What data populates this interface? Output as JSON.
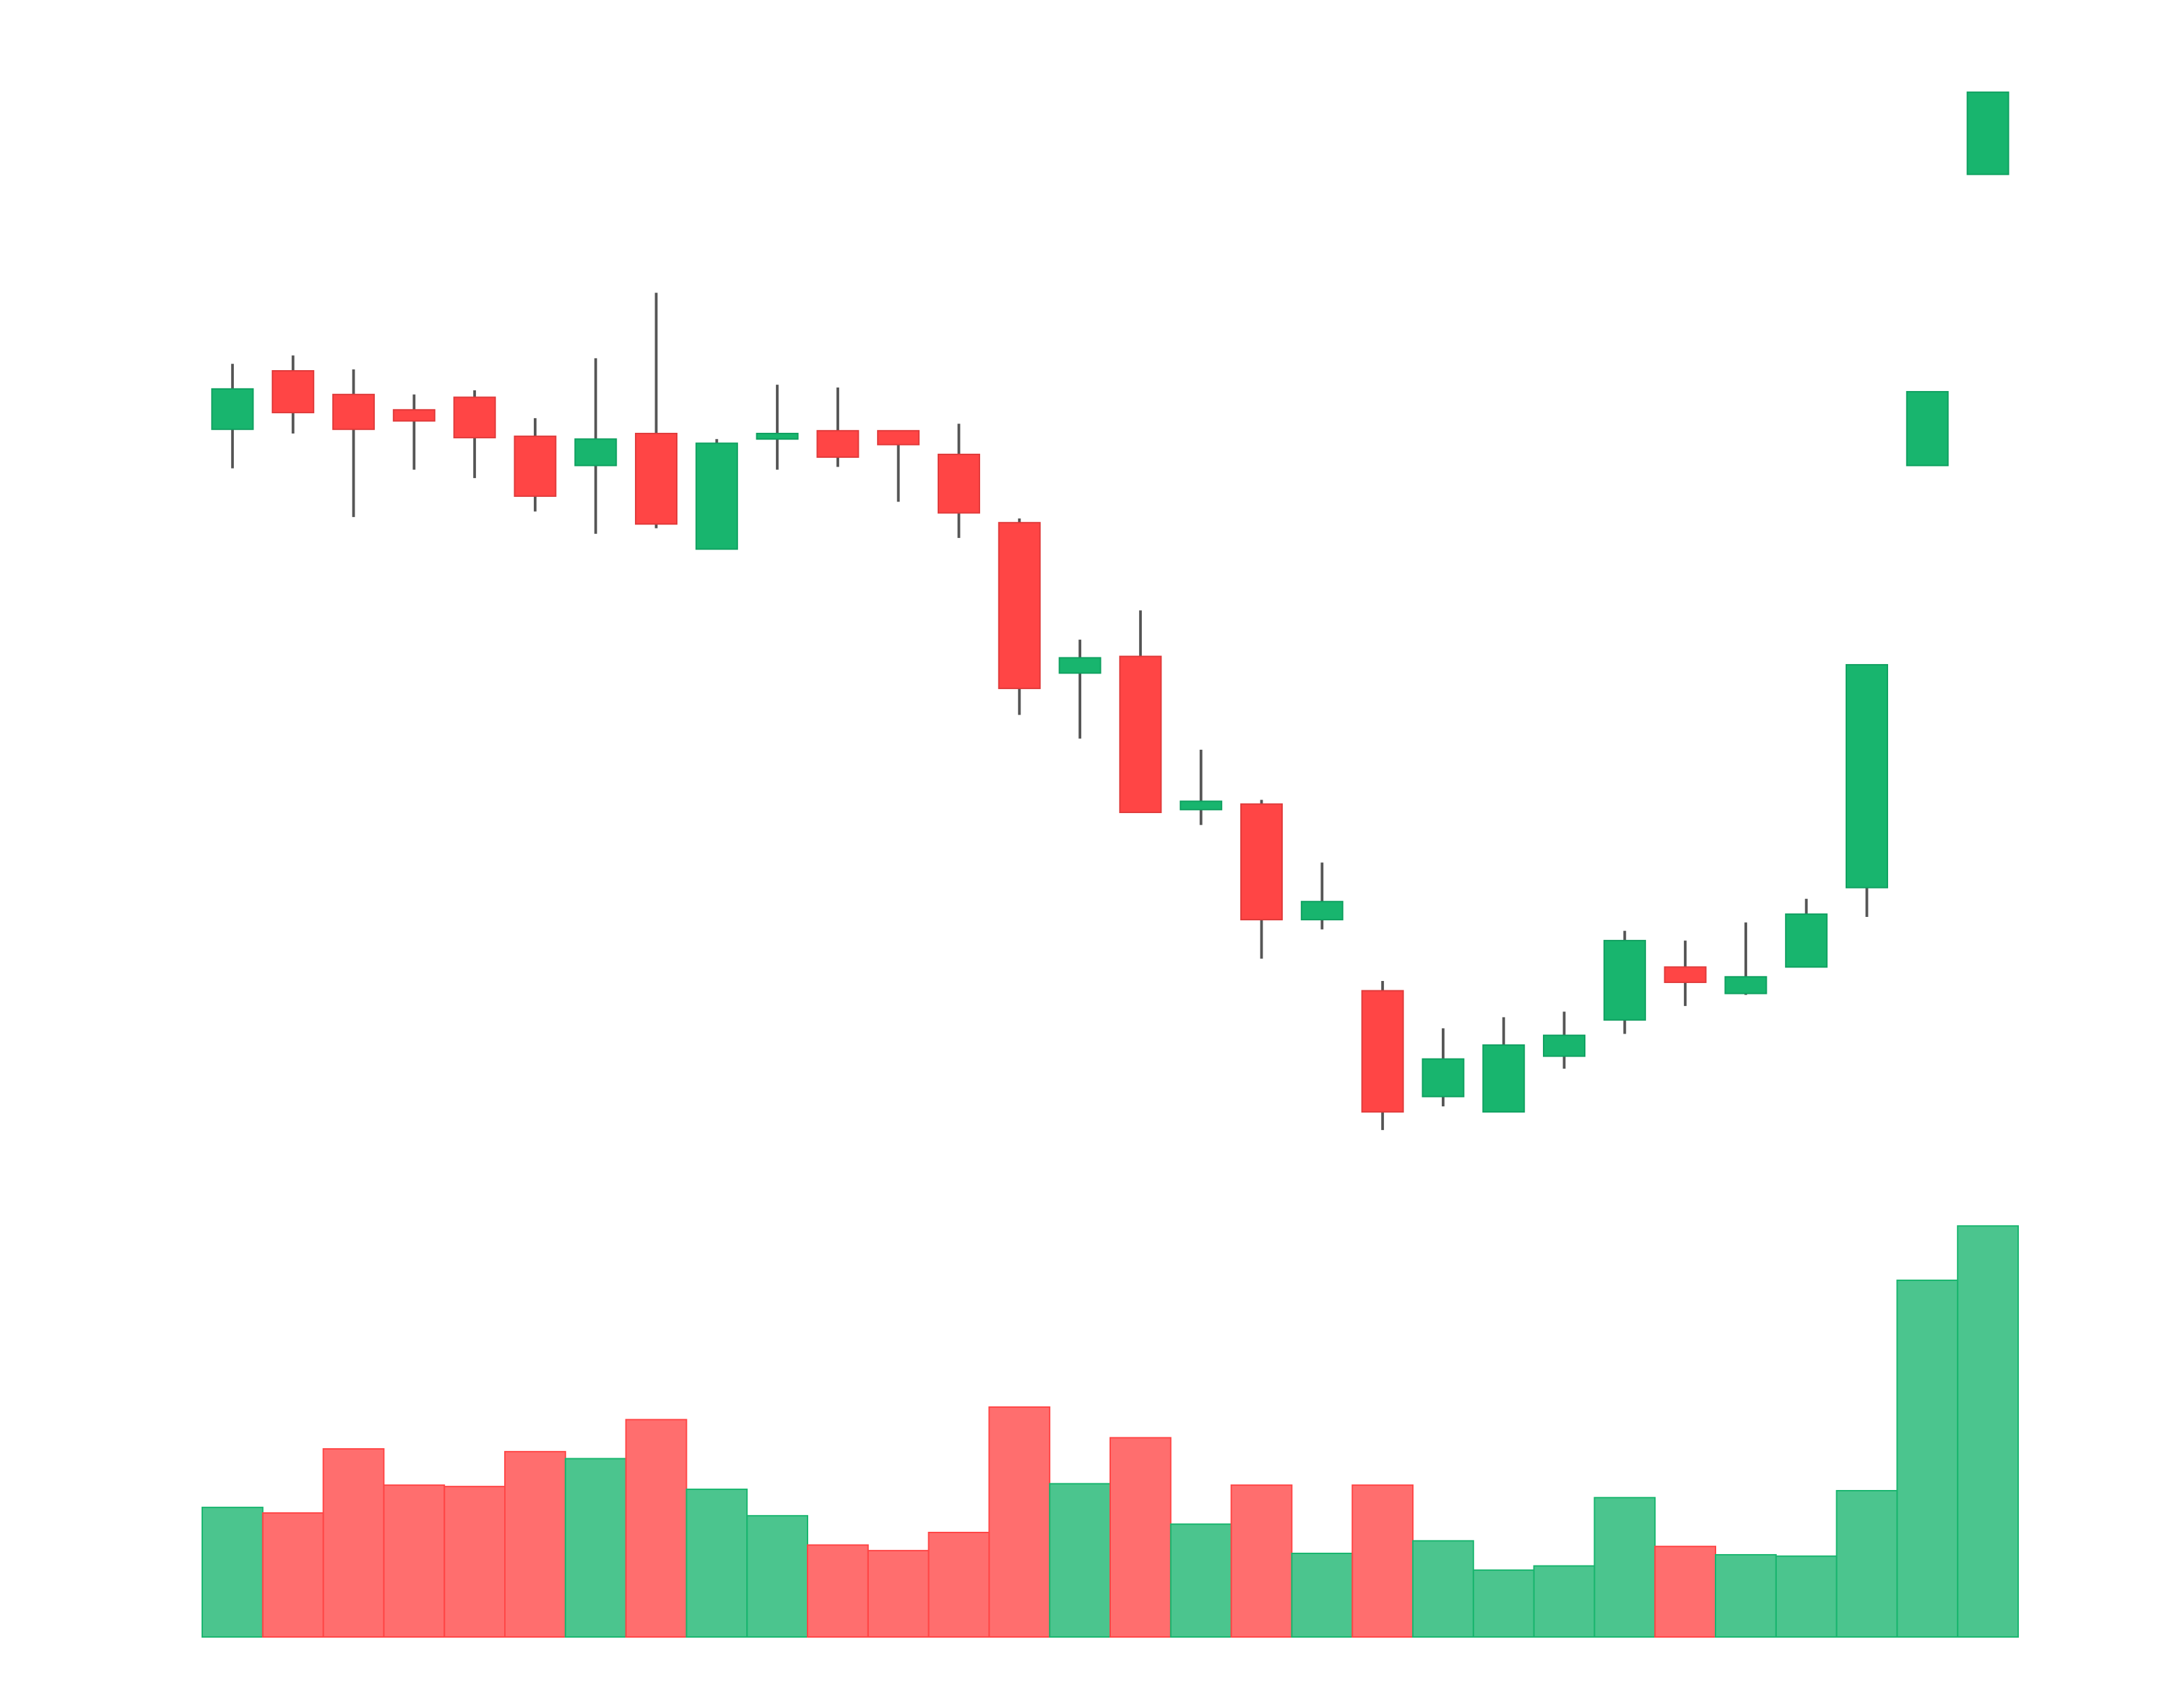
{
  "chart_data": {
    "type": "candlestick",
    "open": [
      59.2,
      63.4,
      61.7,
      60.6,
      61.5,
      58.7,
      56.6,
      58.9,
      50.6,
      58.5,
      59.1,
      59.1,
      57.4,
      52.5,
      41.7,
      42.9,
      31.9,
      32.3,
      24.0,
      18.9,
      11.3,
      10.2,
      14.2,
      16.8,
      20.6,
      18.7,
      20.6,
      26.3,
      56.6,
      77.5
    ],
    "high": [
      63.9,
      64.5,
      63.5,
      61.7,
      62.0,
      60.0,
      64.3,
      69.0,
      58.5,
      62.4,
      62.2,
      59.1,
      59.6,
      52.8,
      44.1,
      46.2,
      36.2,
      32.6,
      28.1,
      19.6,
      16.2,
      17.0,
      17.4,
      23.2,
      22.5,
      23.8,
      25.5,
      42.3,
      61.9,
      83.4
    ],
    "low": [
      56.4,
      58.9,
      52.9,
      56.3,
      55.7,
      53.3,
      51.7,
      52.1,
      50.6,
      56.3,
      56.5,
      54.0,
      51.4,
      38.7,
      37.0,
      31.7,
      30.8,
      21.2,
      23.3,
      8.9,
      10.6,
      10.2,
      13.3,
      15.8,
      17.8,
      18.6,
      20.6,
      24.2,
      56.6,
      77.5
    ],
    "close": [
      62.1,
      60.4,
      59.2,
      59.8,
      58.6,
      54.4,
      58.5,
      52.4,
      58.2,
      58.9,
      57.2,
      58.1,
      53.2,
      40.6,
      42.8,
      31.7,
      32.5,
      24.0,
      25.3,
      10.2,
      14.0,
      15.0,
      15.7,
      22.5,
      19.5,
      19.9,
      24.4,
      42.3,
      61.9,
      83.4
    ],
    "volume": [
      93,
      89,
      135,
      109,
      108,
      133,
      128,
      156,
      106,
      87,
      66,
      62,
      75,
      165,
      110,
      143,
      81,
      109,
      60,
      109,
      69,
      48,
      51,
      100,
      65,
      59,
      58,
      105,
      256,
      295
    ],
    "up_color": "#18b56e",
    "down_color": "#ff4545",
    "wick_color": "#555555",
    "ylim": [
      6,
      86
    ],
    "volume_lim": [
      0,
      300
    ]
  }
}
